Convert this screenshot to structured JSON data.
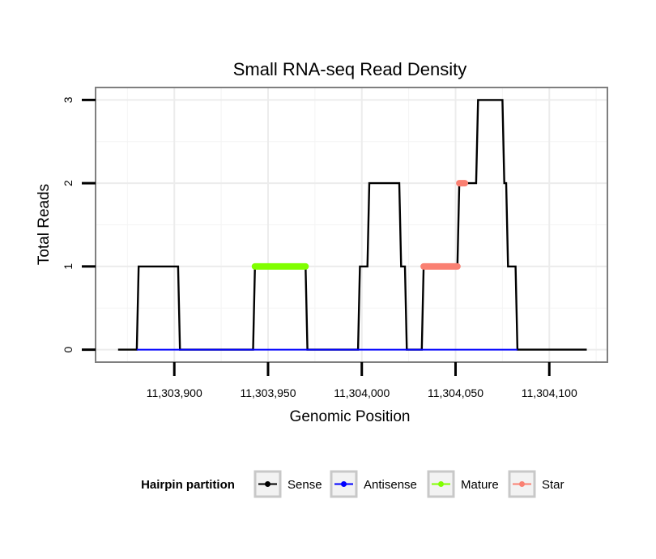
{
  "chart_data": {
    "type": "line",
    "title": "Small RNA-seq Read Density",
    "xlabel": "Genomic Position",
    "ylabel": "Total Reads",
    "xlim": [
      11303858,
      11304131
    ],
    "ylim": [
      -0.15,
      3.15
    ],
    "x_ticks": [
      11303900,
      11303950,
      11304000,
      11304050,
      11304100
    ],
    "x_tick_labels": [
      "11,303,900",
      "11,303,950",
      "11,304,000",
      "11,304,050",
      "11,304,100"
    ],
    "y_ticks": [
      0,
      1,
      2,
      3
    ],
    "y_tick_labels": [
      "0",
      "1",
      "2",
      "3"
    ],
    "grid": true,
    "legend_position": "bottom",
    "legend_title": "Hairpin partition",
    "series": [
      {
        "name": "Sense",
        "color": "#000000",
        "x": [
          11303870,
          11303880,
          11303881,
          11303902,
          11303903,
          11303942,
          11303943,
          11303970,
          11303971,
          11303998,
          11303999,
          11304003,
          11304004,
          11304020,
          11304021,
          11304023,
          11304024,
          11304032,
          11304033,
          11304051,
          11304052,
          11304061,
          11304062,
          11304075,
          11304076,
          11304077,
          11304078,
          11304082,
          11304083,
          11304120
        ],
        "values": [
          0,
          0,
          1,
          1,
          0,
          0,
          1,
          1,
          0,
          0,
          1,
          1,
          2,
          2,
          1,
          1,
          0,
          0,
          1,
          1,
          2,
          2,
          3,
          3,
          2,
          2,
          1,
          1,
          0,
          0
        ]
      },
      {
        "name": "Antisense",
        "color": "#0000ff",
        "x": [
          11303880,
          11304083
        ],
        "values": [
          0,
          0
        ]
      },
      {
        "name": "Mature",
        "color": "#80ff00",
        "segments": [
          {
            "x": [
              11303943,
              11303970
            ],
            "y": 1
          }
        ]
      },
      {
        "name": "Star",
        "color": "#fa8072",
        "segments": [
          {
            "x": [
              11304033,
              11304051
            ],
            "y": 1
          },
          {
            "x": [
              11304052,
              11304055
            ],
            "y": 2
          }
        ]
      }
    ]
  }
}
